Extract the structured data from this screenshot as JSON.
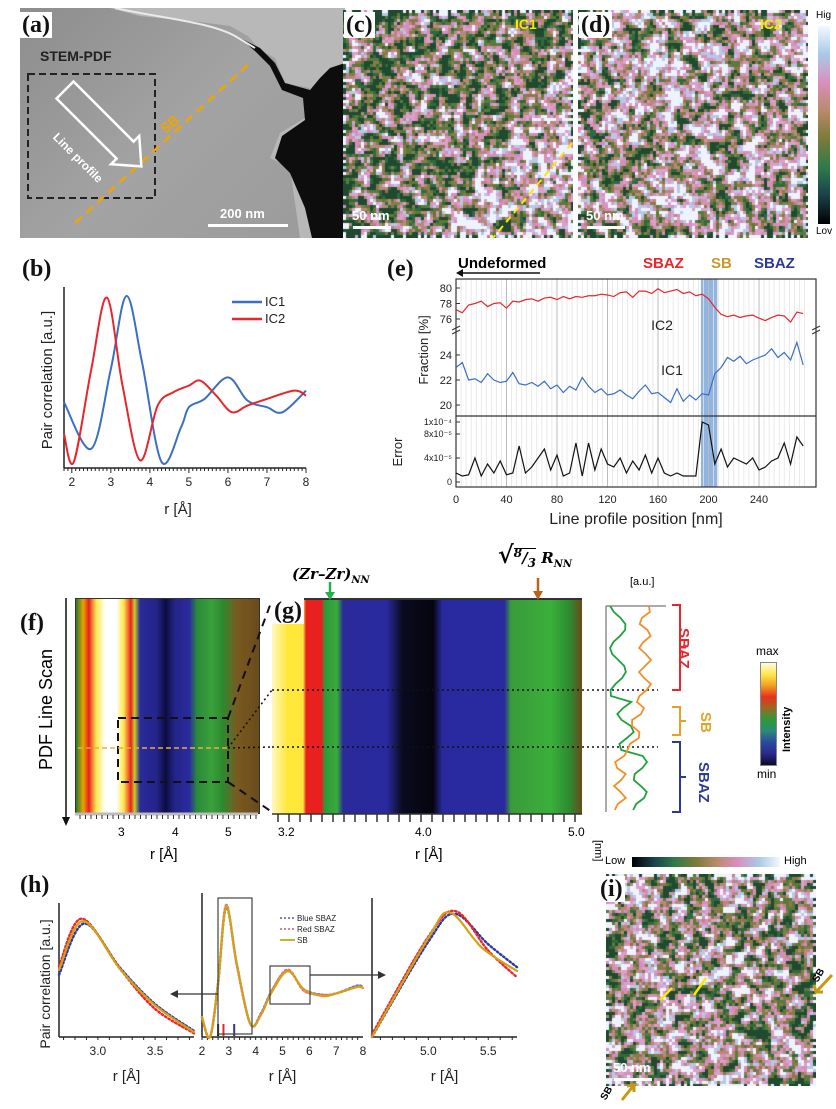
{
  "panels": {
    "a": {
      "label": "(a)",
      "title": "STEM-PDF",
      "arrow_text": "Line profile",
      "sb_text": "SB",
      "scale": "200 nm"
    },
    "c": {
      "label": "(c)",
      "name": "IC1",
      "scale": "50 nm"
    },
    "d": {
      "label": "(d)",
      "name": "IC2",
      "scale": "50 nm",
      "cbar_high": "Hig",
      "cbar_low": "Lov"
    },
    "f": {
      "label": "(f)",
      "ylabel": "PDF Line Scan",
      "xlabel": "r [Å]",
      "ticks": [
        "3",
        "4",
        "5"
      ]
    },
    "g": {
      "label": "(g)",
      "xlabel": "r [Å]",
      "ticks": [
        "3.2",
        "4.0",
        "5.0"
      ],
      "annot_zr": "(Zr–Zr)",
      "annot_zr_sub": "NN",
      "annot_root_num": "8",
      "annot_root_den": "3",
      "annot_r": "R",
      "annot_r_sub": "NN",
      "profile_unit": "[a.u.]",
      "profile_axis": "[nm]",
      "regions": [
        "SBAZ",
        "SB",
        "SBAZ"
      ],
      "cbar_max": "max",
      "cbar_min": "min",
      "cbar_title": "Intensity"
    },
    "i": {
      "label": "(i)",
      "cbar_low": "Low",
      "cbar_high": "High",
      "sb_top": "SB",
      "sb_bottom": "SB",
      "scale": "50 nm"
    },
    "h": {
      "label": "(h)"
    },
    "e": {
      "label": "(e)",
      "undeformed": "Undeformed",
      "regions": [
        "SBAZ",
        "SB",
        "SBAZ"
      ]
    },
    "b": {
      "label": "(b)"
    }
  },
  "colors": {
    "ic1": "#3a6fc4",
    "ic2": "#e8262b",
    "sb": "#d4a017",
    "sbaz_red": "#e8262b",
    "sbaz_blue": "#2b3a9c",
    "sb_band": "#7fa7dc",
    "green_arrow": "#22b04b",
    "orange_arrow": "#c0611a"
  },
  "chart_data": [
    {
      "id": "b",
      "type": "line",
      "xlabel": "r [Å]",
      "ylabel": "Pair correlation  [a.u.]",
      "xlim": [
        1.8,
        8
      ],
      "xticks": [
        2,
        3,
        4,
        5,
        6,
        7,
        8
      ],
      "legend": "top-right",
      "series": [
        {
          "name": "IC1",
          "color": "#3a6fc4",
          "x": [
            1.8,
            2.5,
            3.0,
            3.4,
            3.8,
            4.3,
            4.8,
            5.0,
            5.4,
            6.0,
            6.5,
            7.0,
            7.4,
            8.0
          ],
          "y": [
            0.36,
            0.08,
            0.56,
            1.0,
            0.6,
            0.0,
            0.21,
            0.33,
            0.38,
            0.51,
            0.37,
            0.33,
            0.3,
            0.43
          ]
        },
        {
          "name": "IC2",
          "color": "#e8262b",
          "x": [
            1.8,
            2.05,
            2.5,
            2.9,
            3.3,
            3.75,
            4.2,
            4.6,
            5.0,
            5.3,
            5.7,
            6.1,
            6.5,
            7.0,
            7.7,
            8.0
          ],
          "y": [
            0.17,
            0.0,
            0.56,
            0.99,
            0.46,
            0.01,
            0.34,
            0.42,
            0.46,
            0.49,
            0.4,
            0.3,
            0.34,
            0.38,
            0.43,
            0.4
          ]
        }
      ]
    },
    {
      "id": "e",
      "type": "line",
      "xlabel": "Line profile position [nm]",
      "ylabel_top": "Fraction [%]",
      "ylabel_bottom": "Error",
      "xlim": [
        0,
        277
      ],
      "xticks": [
        0,
        40,
        80,
        120,
        160,
        200,
        240
      ],
      "fraction_axis_break": true,
      "yticks_upper": [
        76,
        78,
        80
      ],
      "yticks_lower": [
        20,
        22,
        24
      ],
      "yticks_error": [
        0,
        4e-05,
        8e-05,
        0.0001
      ],
      "yticklabels_error": [
        "0",
        "4x10⁻⁵",
        "8x10⁻⁵",
        "1x10⁻⁴"
      ],
      "sb_band": [
        194,
        207
      ],
      "x": [
        0,
        5,
        10,
        15,
        20,
        25,
        30,
        35,
        40,
        45,
        50,
        55,
        60,
        65,
        70,
        75,
        80,
        85,
        90,
        95,
        100,
        105,
        110,
        115,
        120,
        125,
        130,
        135,
        140,
        145,
        150,
        155,
        160,
        165,
        170,
        175,
        180,
        185,
        190,
        195,
        200,
        205,
        210,
        215,
        220,
        225,
        230,
        235,
        240,
        245,
        250,
        255,
        260,
        265,
        270,
        275
      ],
      "series": [
        {
          "name": "IC2",
          "color": "#e8262b",
          "panel": "fraction",
          "y": [
            77.2,
            76.8,
            77.8,
            78.0,
            78.3,
            77.6,
            78.0,
            78.1,
            77.4,
            78.3,
            78.2,
            78.5,
            78.6,
            78.3,
            78.7,
            78.8,
            78.5,
            78.9,
            78.6,
            78.9,
            78.8,
            79.0,
            79.0,
            79.2,
            79.1,
            78.9,
            79.4,
            79.5,
            78.8,
            79.6,
            79.6,
            79.3,
            79.9,
            79.4,
            79.6,
            79.8,
            79.3,
            79.5,
            79.0,
            79.2,
            78.6,
            77.5,
            76.6,
            76.3,
            76.5,
            76.2,
            76.4,
            76.5,
            76.1,
            75.8,
            76.2,
            76.5,
            76.4,
            75.6,
            76.9,
            76.7
          ]
        },
        {
          "name": "IC1",
          "color": "#3a6fc4",
          "panel": "fraction",
          "y": [
            23.0,
            23.4,
            22.0,
            22.1,
            21.8,
            22.5,
            22.0,
            21.8,
            21.9,
            22.6,
            21.7,
            21.6,
            21.8,
            21.5,
            21.9,
            21.3,
            21.6,
            21.0,
            21.5,
            21.2,
            22.2,
            21.5,
            21.0,
            21.3,
            20.8,
            20.9,
            21.2,
            20.8,
            20.5,
            21.1,
            21.6,
            20.9,
            21.0,
            20.6,
            20.2,
            21.3,
            20.3,
            20.8,
            20.4,
            20.9,
            20.8,
            22.5,
            23.0,
            23.8,
            23.5,
            23.9,
            23.3,
            23.6,
            23.8,
            24.0,
            24.5,
            23.8,
            24.2,
            23.6,
            25.0,
            23.2
          ]
        },
        {
          "name": "Error",
          "color": "#111111",
          "panel": "error",
          "y": [
            1.5e-05,
            1e-05,
            1.2e-05,
            4e-05,
            1e-05,
            3e-05,
            1.5e-05,
            3.5e-05,
            1.2e-05,
            1.5e-05,
            6e-05,
            1.5e-05,
            2.5e-05,
            4e-05,
            5.5e-05,
            2e-05,
            4.5e-05,
            1e-05,
            1.5e-05,
            6.5e-05,
            1e-05,
            6.5e-05,
            2e-05,
            5.5e-05,
            3e-05,
            2.5e-05,
            4e-05,
            1.5e-05,
            3.5e-05,
            2e-05,
            4.5e-05,
            1.5e-05,
            4e-05,
            1.5e-05,
            1e-05,
            1.5e-05,
            1e-05,
            1e-05,
            1e-05,
            0.0001,
            9.5e-05,
            3e-05,
            5.5e-05,
            2.5e-05,
            4e-05,
            3.5e-05,
            3e-05,
            4e-05,
            2e-05,
            2.5e-05,
            3.5e-05,
            4e-05,
            6.5e-05,
            3e-05,
            7.5e-05,
            6e-05
          ]
        }
      ],
      "series_labels": [
        "IC2",
        "IC1"
      ]
    },
    {
      "id": "h-left",
      "type": "line",
      "xlabel": "r [Å]",
      "ylabel": "Pair correlation [a.u.]",
      "xlim": [
        2.66,
        3.84
      ],
      "xticks": [
        3.0,
        3.5
      ],
      "series": [
        {
          "name": "Blue SBAZ",
          "color": "#2b3a9c",
          "style": "dotted",
          "x": [
            2.66,
            2.88,
            3.2,
            3.5,
            3.84
          ],
          "y": [
            0.51,
            0.93,
            0.56,
            0.27,
            0.05
          ]
        },
        {
          "name": "Red SBAZ",
          "color": "#e8262b",
          "style": "dotted",
          "x": [
            2.66,
            2.86,
            3.2,
            3.5,
            3.84
          ],
          "y": [
            0.58,
            0.97,
            0.55,
            0.23,
            0.03
          ]
        },
        {
          "name": "SB",
          "color": "#d4a017",
          "style": "solid",
          "x": [
            2.66,
            2.87,
            3.2,
            3.5,
            3.84
          ],
          "y": [
            0.55,
            0.95,
            0.55,
            0.26,
            0.04
          ]
        }
      ]
    },
    {
      "id": "h-middle",
      "type": "line",
      "xlabel": "r [Å]",
      "xlim": [
        2,
        8
      ],
      "xticks": [
        2,
        3,
        4,
        5,
        6,
        7,
        8
      ],
      "legend": "top-right",
      "markers": [
        {
          "x": 2.6,
          "color": "#111111"
        },
        {
          "x": 2.8,
          "color": "#e8262b"
        },
        {
          "x": 3.2,
          "color": "#2b3a9c"
        }
      ],
      "series": [
        {
          "name": "Blue SBAZ",
          "color": "#6a6fc8",
          "style": "dotted",
          "x": [
            2.0,
            2.3,
            2.6,
            2.9,
            3.3,
            3.8,
            4.2,
            4.6,
            5.2,
            5.8,
            6.5,
            7.0,
            7.8,
            8.0
          ],
          "y": [
            0.15,
            0.0,
            0.4,
            0.98,
            0.55,
            0.1,
            0.18,
            0.35,
            0.5,
            0.36,
            0.32,
            0.33,
            0.39,
            0.37
          ]
        },
        {
          "name": "Red SBAZ",
          "color": "#e0707a",
          "style": "dotted",
          "x": [
            2.0,
            2.3,
            2.6,
            2.9,
            3.3,
            3.8,
            4.2,
            4.6,
            5.2,
            5.8,
            6.5,
            7.0,
            7.8,
            8.0
          ],
          "y": [
            0.15,
            0.0,
            0.42,
            1.0,
            0.54,
            0.1,
            0.17,
            0.35,
            0.51,
            0.35,
            0.32,
            0.33,
            0.38,
            0.37
          ]
        },
        {
          "name": "SB",
          "color": "#d4a017",
          "style": "solid",
          "x": [
            2.0,
            2.3,
            2.6,
            2.9,
            3.3,
            3.8,
            4.2,
            4.6,
            5.2,
            5.8,
            6.5,
            7.0,
            7.8,
            8.0
          ],
          "y": [
            0.15,
            0.0,
            0.41,
            0.99,
            0.55,
            0.1,
            0.17,
            0.34,
            0.5,
            0.36,
            0.31,
            0.33,
            0.38,
            0.37
          ]
        }
      ]
    },
    {
      "id": "h-right",
      "type": "line",
      "xlabel": "r [Å]",
      "xlim": [
        4.53,
        5.74
      ],
      "xticks": [
        5.0,
        5.5
      ],
      "series": [
        {
          "name": "Blue SBAZ",
          "color": "#2b3a9c",
          "style": "dotted",
          "x": [
            4.53,
            5.0,
            5.22,
            5.5,
            5.74
          ],
          "y": [
            0.0,
            0.75,
            0.97,
            0.73,
            0.55
          ]
        },
        {
          "name": "Red SBAZ",
          "color": "#e8262b",
          "style": "dotted",
          "x": [
            4.53,
            5.0,
            5.23,
            5.5,
            5.74
          ],
          "y": [
            0.02,
            0.79,
            0.99,
            0.68,
            0.47
          ]
        },
        {
          "name": "SB",
          "color": "#d4a017",
          "style": "solid",
          "x": [
            4.53,
            5.0,
            5.18,
            5.45,
            5.74
          ],
          "y": [
            0.0,
            0.78,
            0.98,
            0.7,
            0.52
          ]
        }
      ]
    }
  ]
}
